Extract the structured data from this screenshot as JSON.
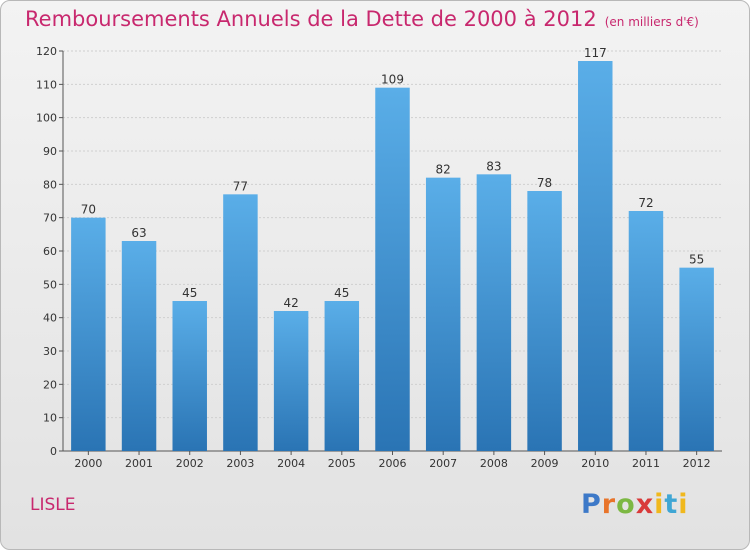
{
  "chart_data": {
    "type": "bar",
    "title": "Remboursements Annuels de la Dette de 2000 à 2012",
    "unit_note": "(en milliers d'€)",
    "categories": [
      "2000",
      "2001",
      "2002",
      "2003",
      "2004",
      "2005",
      "2006",
      "2007",
      "2008",
      "2009",
      "2010",
      "2011",
      "2012"
    ],
    "values": [
      70,
      63,
      45,
      77,
      42,
      45,
      109,
      82,
      83,
      78,
      117,
      72,
      55
    ],
    "ylim": [
      0,
      120
    ],
    "yticks": [
      0,
      10,
      20,
      30,
      40,
      50,
      60,
      70,
      80,
      90,
      100,
      110,
      120
    ],
    "grid": true,
    "bar_color_top": "#5aaee8",
    "bar_color_bottom": "#2a74b4",
    "xlabel": "",
    "ylabel": ""
  },
  "footer": {
    "commune": "LISLE",
    "logo": [
      "P",
      "r",
      "o",
      "x",
      "i",
      "t",
      "i"
    ]
  }
}
